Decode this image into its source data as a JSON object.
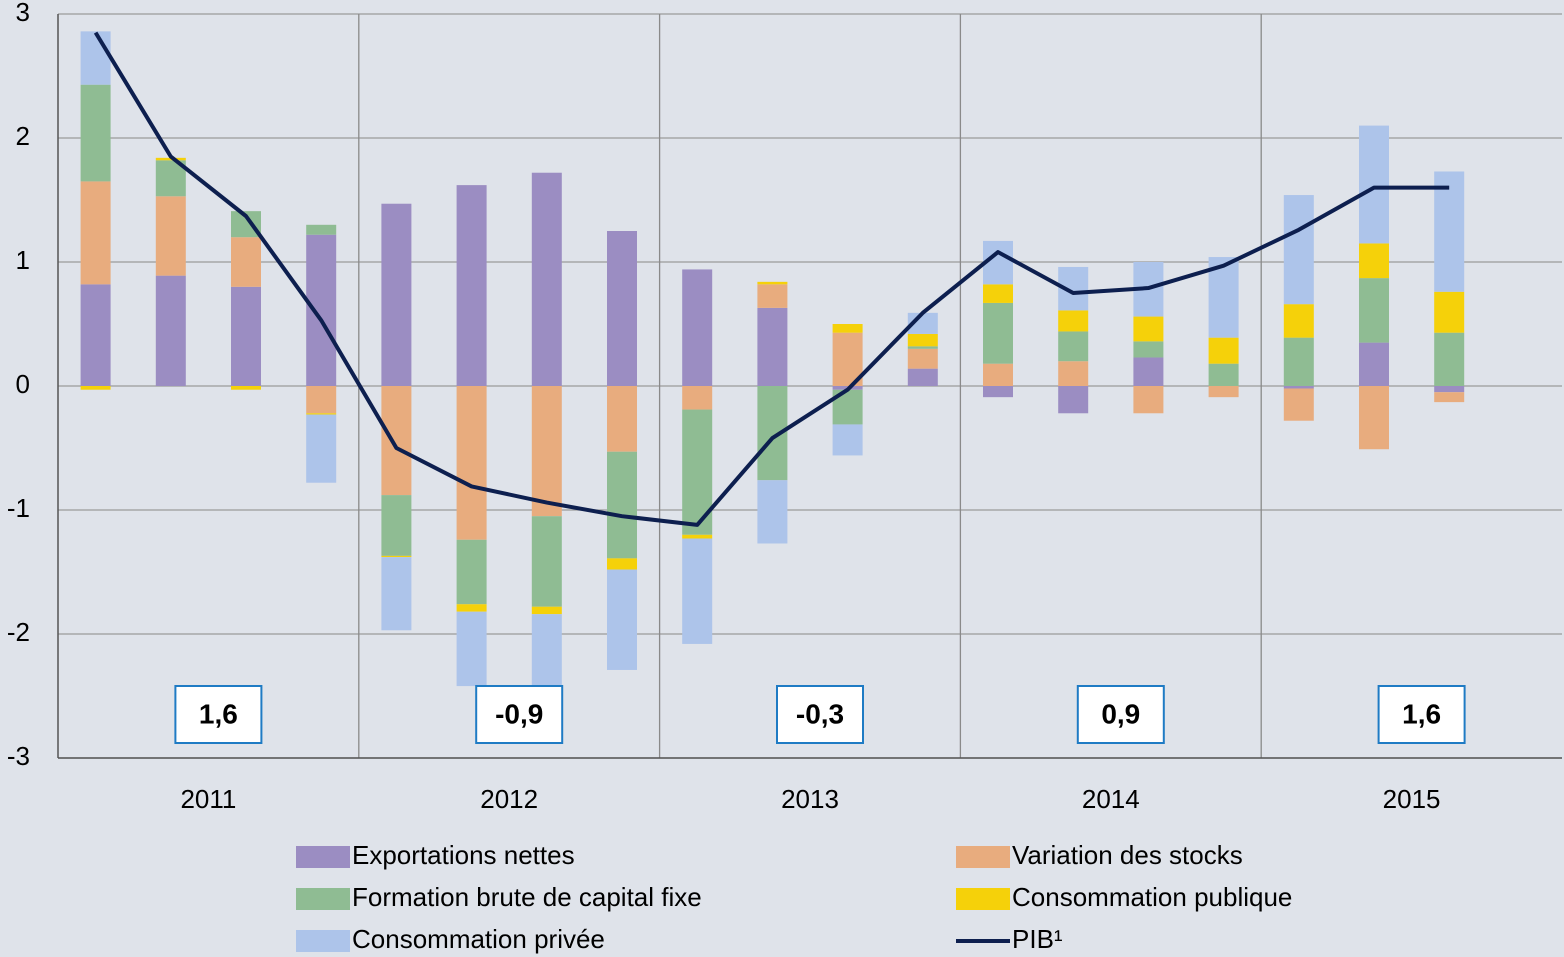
{
  "chart_data": {
    "type": "bar",
    "stacked": true,
    "categories": [
      null,
      null,
      null,
      null,
      null,
      null,
      null,
      null,
      null,
      null,
      null,
      null,
      null,
      null,
      null,
      null,
      null,
      null,
      null,
      null
    ],
    "groups": [
      "2011",
      "2012",
      "2013",
      "2014",
      "2015"
    ],
    "ylim": [
      -3,
      3
    ],
    "yticks": [
      -3,
      -2,
      -1,
      0,
      1,
      2,
      3
    ],
    "grid": true,
    "series": [
      {
        "name": "Exportations nettes",
        "color": "#9b8dc2",
        "values": [
          0.82,
          0.89,
          0.8,
          1.22,
          1.47,
          1.62,
          1.72,
          1.25,
          0.94,
          0.63,
          -0.03,
          0.14,
          -0.09,
          -0.22,
          0.23,
          0,
          -0.02,
          0.35,
          -0.05,
          null
        ]
      },
      {
        "name": "Variation des stocks",
        "color": "#e8ac7e",
        "values": [
          0.83,
          0.64,
          0.4,
          -0.22,
          -0.88,
          -1.24,
          -1.05,
          -0.53,
          -0.19,
          0.19,
          0.43,
          0.16,
          0.18,
          0.2,
          -0.22,
          -0.09,
          -0.26,
          -0.51,
          -0.08,
          null
        ]
      },
      {
        "name": "Formation brute de capital fixe",
        "color": "#8fbc93",
        "values": [
          0.78,
          0.29,
          0.21,
          0.08,
          -0.49,
          -0.52,
          -0.73,
          -0.86,
          -1.01,
          -0.76,
          -0.28,
          0.02,
          0.49,
          0.24,
          0.13,
          0.18,
          0.39,
          0.52,
          0.43,
          null
        ]
      },
      {
        "name": "Consommation publique",
        "color": "#f5d10a",
        "values": [
          -0.03,
          0.02,
          -0.03,
          -0.01,
          -0.01,
          -0.06,
          -0.06,
          -0.09,
          -0.03,
          0.02,
          0.07,
          0.1,
          0.15,
          0.17,
          0.2,
          0.21,
          0.27,
          0.28,
          0.33,
          null
        ]
      },
      {
        "name": "Consommation privée",
        "color": "#adc4ea",
        "values": [
          0.43,
          0,
          0,
          -0.55,
          -0.59,
          -0.6,
          -0.75,
          -0.81,
          -0.85,
          -0.51,
          -0.25,
          0.17,
          0.35,
          0.35,
          0.44,
          0.65,
          0.88,
          0.95,
          0.97,
          null
        ]
      },
      {
        "name": "PIB¹",
        "type": "line",
        "color": "#0d1f4f",
        "values": [
          2.85,
          1.85,
          1.37,
          0.53,
          -0.5,
          -0.81,
          -0.94,
          -1.05,
          -1.12,
          -0.42,
          -0.03,
          0.59,
          1.08,
          0.75,
          0.79,
          0.97,
          1.26,
          1.6,
          1.6,
          null
        ]
      }
    ],
    "annual_growth": {
      "values": [
        1.6,
        -0.9,
        -0.3,
        0.9,
        1.6
      ],
      "value_labels": [
        "1,6",
        "-0,9",
        "-0,3",
        "0,9",
        "1,6"
      ],
      "color": "#1f7bc4"
    }
  }
}
